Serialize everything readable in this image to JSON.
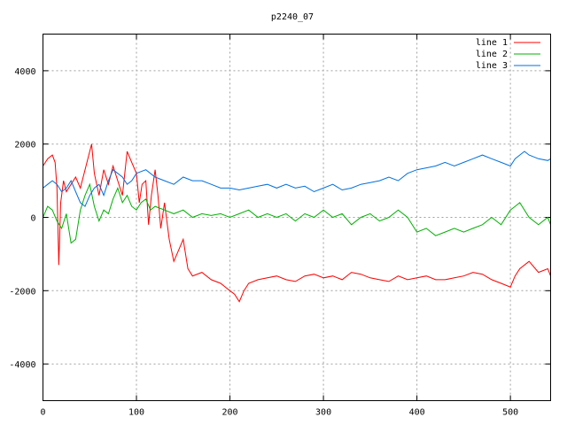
{
  "chart_data": {
    "type": "line",
    "title": "p2240_07",
    "xlabel": "",
    "ylabel": "",
    "xlim": [
      0,
      543
    ],
    "ylim": [
      -5000,
      5000
    ],
    "xticks": [
      0,
      100,
      200,
      300,
      400,
      500
    ],
    "yticks": [
      -4000,
      -2000,
      0,
      2000,
      4000
    ],
    "grid": true,
    "legend_position": "top-right",
    "series": [
      {
        "name": "line 1",
        "color": "#ff0000",
        "x": [
          0,
          5,
          10,
          13,
          15,
          17,
          19,
          22,
          25,
          30,
          35,
          40,
          45,
          50,
          52,
          55,
          60,
          65,
          70,
          75,
          80,
          85,
          90,
          95,
          100,
          103,
          106,
          110,
          113,
          116,
          120,
          123,
          126,
          130,
          135,
          140,
          145,
          150,
          155,
          160,
          170,
          180,
          190,
          200,
          205,
          210,
          215,
          220,
          230,
          240,
          250,
          260,
          270,
          280,
          290,
          300,
          310,
          320,
          330,
          340,
          350,
          360,
          370,
          380,
          390,
          400,
          410,
          420,
          430,
          440,
          450,
          460,
          470,
          480,
          490,
          500,
          505,
          510,
          520,
          530,
          540,
          543
        ],
        "y": [
          1400,
          1600,
          1700,
          1500,
          800,
          -1300,
          400,
          1000,
          700,
          900,
          1100,
          800,
          1300,
          1800,
          2000,
          1200,
          600,
          1300,
          900,
          1400,
          1000,
          600,
          1800,
          1500,
          1200,
          400,
          900,
          1000,
          -200,
          600,
          1300,
          600,
          -300,
          400,
          -600,
          -1200,
          -900,
          -600,
          -1400,
          -1600,
          -1500,
          -1700,
          -1800,
          -2000,
          -2100,
          -2300,
          -2000,
          -1800,
          -1700,
          -1650,
          -1600,
          -1700,
          -1750,
          -1600,
          -1550,
          -1650,
          -1600,
          -1700,
          -1500,
          -1550,
          -1650,
          -1700,
          -1750,
          -1600,
          -1700,
          -1650,
          -1600,
          -1700,
          -1700,
          -1650,
          -1600,
          -1500,
          -1550,
          -1700,
          -1800,
          -1900,
          -1600,
          -1400,
          -1200,
          -1500,
          -1400,
          -1600
        ]
      },
      {
        "name": "line 2",
        "color": "#00b000",
        "x": [
          0,
          5,
          10,
          15,
          20,
          25,
          30,
          35,
          40,
          45,
          50,
          55,
          60,
          65,
          70,
          75,
          80,
          85,
          90,
          95,
          100,
          105,
          110,
          115,
          120,
          130,
          140,
          150,
          160,
          170,
          180,
          190,
          200,
          210,
          220,
          230,
          240,
          250,
          260,
          270,
          280,
          290,
          300,
          310,
          320,
          330,
          340,
          350,
          360,
          370,
          380,
          390,
          400,
          410,
          420,
          430,
          440,
          450,
          460,
          470,
          480,
          490,
          500,
          505,
          510,
          520,
          530,
          540,
          543
        ],
        "y": [
          0,
          300,
          200,
          -100,
          -300,
          100,
          -700,
          -600,
          200,
          600,
          900,
          300,
          -100,
          200,
          100,
          500,
          800,
          400,
          600,
          300,
          200,
          400,
          500,
          200,
          300,
          200,
          100,
          200,
          0,
          100,
          50,
          100,
          0,
          100,
          200,
          0,
          100,
          0,
          100,
          -100,
          100,
          0,
          200,
          0,
          100,
          -200,
          0,
          100,
          -100,
          0,
          200,
          0,
          -400,
          -300,
          -500,
          -400,
          -300,
          -400,
          -300,
          -200,
          0,
          -200,
          200,
          300,
          400,
          0,
          -200,
          0,
          -200
        ]
      },
      {
        "name": "line 3",
        "color": "#0070e0",
        "x": [
          0,
          5,
          10,
          15,
          20,
          25,
          30,
          35,
          40,
          45,
          50,
          55,
          60,
          65,
          70,
          75,
          80,
          85,
          90,
          95,
          100,
          110,
          120,
          130,
          140,
          150,
          160,
          170,
          180,
          190,
          200,
          210,
          220,
          230,
          240,
          250,
          260,
          270,
          280,
          290,
          300,
          310,
          320,
          330,
          340,
          350,
          360,
          370,
          380,
          390,
          400,
          410,
          420,
          430,
          440,
          450,
          460,
          470,
          480,
          490,
          500,
          505,
          510,
          515,
          520,
          530,
          540,
          543
        ],
        "y": [
          800,
          900,
          1000,
          900,
          700,
          800,
          1000,
          700,
          400,
          300,
          600,
          800,
          900,
          600,
          1000,
          1300,
          1200,
          1100,
          900,
          1000,
          1200,
          1300,
          1100,
          1000,
          900,
          1100,
          1000,
          1000,
          900,
          800,
          800,
          750,
          800,
          850,
          900,
          800,
          900,
          800,
          850,
          700,
          800,
          900,
          750,
          800,
          900,
          950,
          1000,
          1100,
          1000,
          1200,
          1300,
          1350,
          1400,
          1500,
          1400,
          1500,
          1600,
          1700,
          1600,
          1500,
          1400,
          1600,
          1700,
          1800,
          1700,
          1600,
          1550,
          1600
        ]
      }
    ]
  }
}
